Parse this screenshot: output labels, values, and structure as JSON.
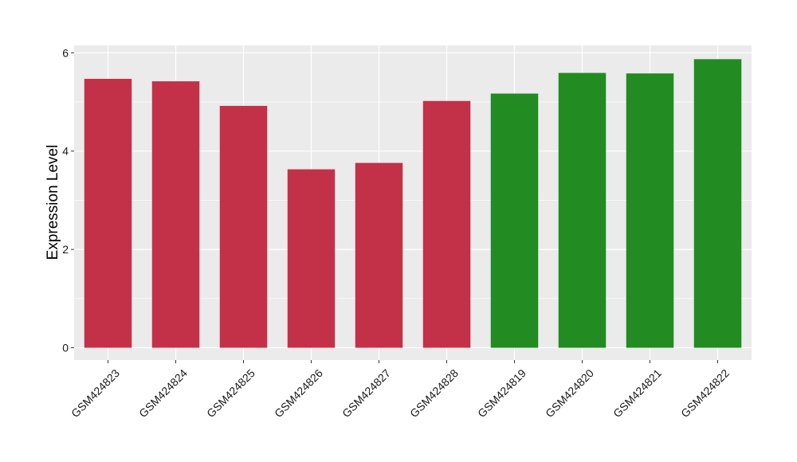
{
  "chart_data": {
    "type": "bar",
    "categories": [
      "GSM424823",
      "GSM424824",
      "GSM424825",
      "GSM424826",
      "GSM424827",
      "GSM424828",
      "GSM424819",
      "GSM424820",
      "GSM424821",
      "GSM424822"
    ],
    "values": [
      5.47,
      5.42,
      4.92,
      3.63,
      3.76,
      5.02,
      5.17,
      5.59,
      5.58,
      5.87
    ],
    "bar_colors": [
      "#c33149",
      "#c33149",
      "#c33149",
      "#c33149",
      "#c33149",
      "#c33149",
      "#228b22",
      "#228b22",
      "#228b22",
      "#228b22"
    ],
    "ylabel": "Expression Level",
    "xlabel": "",
    "ylim": [
      -0.25,
      6.15
    ],
    "yticks": [
      0,
      2,
      4,
      6
    ],
    "ytick_labels": [
      "0",
      "2",
      "4",
      "6"
    ],
    "grid": true,
    "panel_background": "#ebebeb",
    "grid_color": "#ffffff",
    "legend": "none"
  }
}
